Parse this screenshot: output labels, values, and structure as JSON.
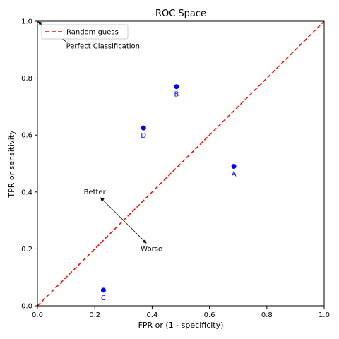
{
  "chart_data": {
    "type": "scatter",
    "title": "ROC Space",
    "xlabel": "FPR or (1 - specificity)",
    "ylabel": "TPR or sensitivity",
    "xlim": [
      0,
      1
    ],
    "ylim": [
      0,
      1
    ],
    "x_ticks": [
      "0.0",
      "0.2",
      "0.4",
      "0.6",
      "0.8",
      "1.0"
    ],
    "y_ticks": [
      "0.0",
      "0.2",
      "0.4",
      "0.6",
      "0.8",
      "1.0"
    ],
    "grid": false,
    "legend": {
      "placement": "upper-left",
      "entries": [
        "Random guess"
      ]
    },
    "series": [
      {
        "type": "line",
        "name": "Random guess",
        "x": [
          0,
          1
        ],
        "y": [
          0,
          1
        ],
        "color": "#ff0000",
        "style": "dashed"
      }
    ],
    "points": [
      {
        "label": "A",
        "x": 0.685,
        "y": 0.49
      },
      {
        "label": "B",
        "x": 0.485,
        "y": 0.77
      },
      {
        "label": "C",
        "x": 0.23,
        "y": 0.055
      },
      {
        "label": "D",
        "x": 0.37,
        "y": 0.625
      }
    ],
    "point_color": "#0000ff",
    "annotations": [
      {
        "text": "Perfect Classification",
        "x": 0.1,
        "y": 0.905,
        "arrow_to": [
          0,
          1
        ]
      },
      {
        "text": "Better",
        "x": 0.2,
        "y": 0.4,
        "arrow_to": [
          0.22,
          0.38
        ],
        "arrow_from": [
          0.38,
          0.22
        ]
      },
      {
        "text": "Worse",
        "x": 0.36,
        "y": 0.2
      }
    ]
  }
}
